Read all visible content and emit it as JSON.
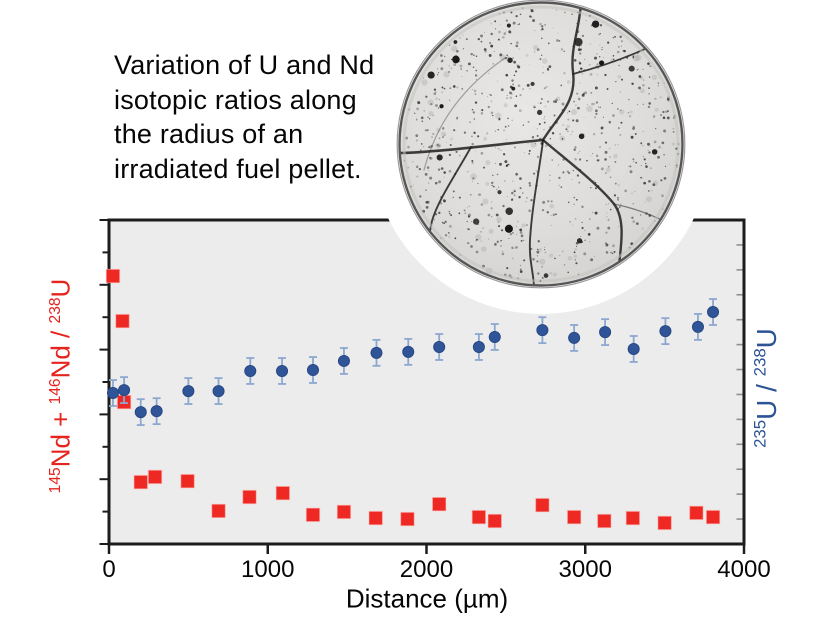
{
  "caption": {
    "lines": [
      "Variation of U and Nd",
      "isotopic ratios along",
      "the radius of an",
      "irradiated fuel pellet."
    ]
  },
  "inset": {
    "type": "micrograph",
    "shape": "circle",
    "description": "grayscale optical micrograph of an irradiated fuel pellet cross-section with radial cracks and dark porosity speckles"
  },
  "chart_data": {
    "type": "scatter",
    "title": "",
    "xlabel": "Distance (µm)",
    "xlim": [
      0,
      4000
    ],
    "x_ticks": [
      0,
      1000,
      2000,
      3000,
      4000
    ],
    "grid": false,
    "legend": false,
    "background": "#ececec",
    "border_color": "#1c1c1c",
    "y_axis_note": "left and right y axes carry tick marks but no numeric labels; y values below are fractions of plot height (0 = bottom axis, 1 = top axis)",
    "left_axis": {
      "label_text": "145Nd + 146Nd / 238U",
      "label_parts": [
        {
          "sup": "145"
        },
        {
          "t": "Nd + "
        },
        {
          "sup": "146"
        },
        {
          "t": "Nd / "
        },
        {
          "sup": "238"
        },
        {
          "t": "U"
        }
      ],
      "color": "#e6231d"
    },
    "right_axis": {
      "label_text": "235U / 238U",
      "label_parts": [
        {
          "sup": "235"
        },
        {
          "t": "U / "
        },
        {
          "sup": "238"
        },
        {
          "t": "U"
        }
      ],
      "color": "#2c5394"
    },
    "series": [
      {
        "name": "145Nd + 146Nd / 238U",
        "axis": "left",
        "marker": "square",
        "color": "#ee2823",
        "x": [
          25,
          85,
          95,
          200,
          290,
          495,
          690,
          885,
          1095,
          1285,
          1480,
          1680,
          1880,
          2080,
          2330,
          2430,
          2730,
          2930,
          3120,
          3300,
          3500,
          3700,
          3805
        ],
        "y": [
          0.827,
          0.688,
          0.438,
          0.191,
          0.207,
          0.194,
          0.102,
          0.145,
          0.157,
          0.09,
          0.099,
          0.08,
          0.077,
          0.123,
          0.083,
          0.071,
          0.12,
          0.083,
          0.071,
          0.08,
          0.065,
          0.096,
          0.083
        ]
      },
      {
        "name": "235U / 238U",
        "axis": "right",
        "marker": "circle",
        "color": "#2f5497",
        "error": 0.04,
        "error_color": "#8ca7d0",
        "x": [
          25,
          95,
          200,
          300,
          500,
          690,
          890,
          1090,
          1285,
          1480,
          1685,
          1885,
          2080,
          2330,
          2430,
          2730,
          2930,
          3125,
          3305,
          3505,
          3710,
          3805
        ],
        "y": [
          0.466,
          0.475,
          0.407,
          0.41,
          0.472,
          0.472,
          0.534,
          0.534,
          0.537,
          0.565,
          0.59,
          0.593,
          0.608,
          0.608,
          0.639,
          0.66,
          0.636,
          0.654,
          0.602,
          0.657,
          0.67,
          0.716
        ]
      }
    ]
  }
}
